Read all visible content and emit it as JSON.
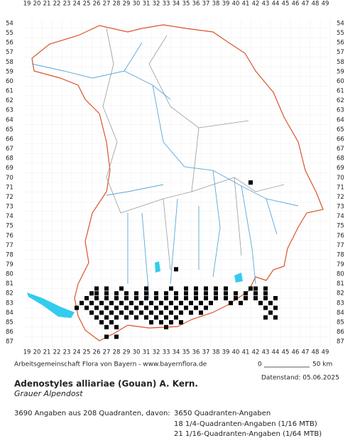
{
  "map": {
    "columns": [
      19,
      20,
      21,
      22,
      23,
      24,
      25,
      26,
      27,
      28,
      29,
      30,
      31,
      32,
      33,
      34,
      35,
      36,
      37,
      38,
      39,
      40,
      41,
      42,
      43,
      44,
      45,
      46,
      47,
      48,
      49
    ],
    "rows": [
      54,
      55,
      56,
      57,
      58,
      59,
      60,
      61,
      62,
      63,
      64,
      65,
      66,
      67,
      68,
      69,
      70,
      71,
      72,
      73,
      74,
      75,
      76,
      77,
      78,
      79,
      80,
      81,
      82,
      83,
      84,
      85,
      86,
      87
    ],
    "occurrences": [
      {
        "row": 70.5,
        "cols": [
          41.5
        ]
      },
      {
        "row": 79.5,
        "cols": [
          34
        ]
      },
      {
        "row": 81.5,
        "cols": [
          26,
          27,
          28.5,
          31,
          33.5,
          35,
          36,
          37,
          38,
          39,
          41.5,
          42,
          43
        ]
      },
      {
        "row": 82,
        "cols": [
          25.5,
          26,
          27,
          28,
          29,
          30,
          31,
          32,
          33,
          34,
          35,
          36,
          37,
          38,
          39,
          40,
          41,
          42,
          43
        ]
      },
      {
        "row": 82.5,
        "cols": [
          25,
          26,
          27,
          28,
          29,
          30,
          31,
          32,
          33,
          34,
          35,
          36,
          37,
          38,
          39,
          40,
          41,
          42,
          43,
          44
        ]
      },
      {
        "row": 83,
        "cols": [
          24.5,
          25.5,
          26.5,
          27.5,
          28.5,
          29.5,
          30.5,
          31.5,
          32.5,
          33.5,
          34.5,
          35.5,
          36.5,
          37.5,
          39.5,
          40.5,
          42.5,
          43.5
        ]
      },
      {
        "row": 83.5,
        "cols": [
          24,
          25,
          26,
          27,
          28,
          29,
          30,
          31,
          32,
          33,
          34,
          35,
          36,
          37,
          43,
          44
        ]
      },
      {
        "row": 84,
        "cols": [
          25.5,
          26.5,
          27.5,
          28.5,
          29.5,
          30.5,
          31.5,
          32.5,
          33.5,
          34.5,
          35.5,
          36.5,
          43.5
        ]
      },
      {
        "row": 84.5,
        "cols": [
          26,
          27,
          28,
          29,
          30,
          31,
          32,
          33,
          34,
          43,
          44
        ]
      },
      {
        "row": 85,
        "cols": [
          26.5,
          27.5,
          31.5,
          32.5,
          33.5,
          34.5
        ]
      },
      {
        "row": 85.5,
        "cols": [
          27,
          28,
          33
        ]
      },
      {
        "row": 86.5,
        "cols": [
          27,
          28
        ]
      }
    ]
  },
  "footer": {
    "credit": "Arbeitsgemeinschaft Flora von Bayern - www.bayernflora.de",
    "scale_start": "0",
    "scale_end": "50 km",
    "date": "Datenstand: 05.06.2025",
    "title": "Adenostyles alliariae (Gouan) A. Kern.",
    "common_name": "Grauer Alpendost",
    "summary": "3690 Angaben aus 208 Quadranten, davon:",
    "stat1": "3650 Quadranten-Angaben",
    "stat2": "18 1/4-Quadranten-Angaben (1/16 MTB)",
    "stat3": "21 1/16-Quadranten-Angaben (1/64 MTB)"
  }
}
